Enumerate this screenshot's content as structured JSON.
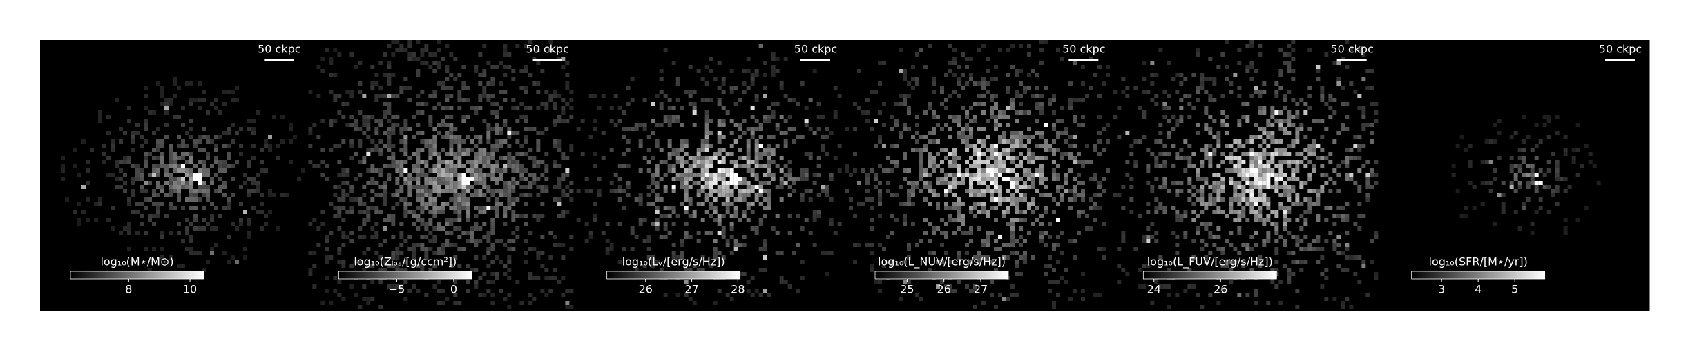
{
  "panels": [
    {
      "label": "log₁₀(M⋆/M⊙)",
      "scalebar": "50 ckpc",
      "clim": [
        6.1,
        10.45
      ],
      "ticks": [
        8,
        10
      ]
    },
    {
      "label": "log₁₀(Zₗₒₛ/[g/ccm²])",
      "scalebar": "50 ckpc",
      "clim": [
        -10.1,
        1.6
      ],
      "ticks": [
        {
          "value": -5,
          "label": "−5"
        },
        0
      ]
    },
    {
      "label": "log₁₀(Lᵥ/[erg/s/Hz])",
      "scalebar": "50 ckpc",
      "clim": [
        25.16,
        28.05
      ],
      "ticks": [
        26,
        27,
        28
      ]
    },
    {
      "label": "log₁₀(L_NUV/[erg/s/Hz])",
      "scalebar": "50 ckpc",
      "clim": [
        24.13,
        27.75
      ],
      "ticks": [
        25,
        26,
        27
      ]
    },
    {
      "label": "log₁₀(L_FUV/[erg/s/Hz])",
      "scalebar": "50 ckpc",
      "clim": [
        23.68,
        27.68
      ],
      "ticks": [
        24,
        26
      ]
    },
    {
      "label": "log₁₀(SFR/[M⋆/yr])",
      "scalebar": "50 ckpc",
      "clim": [
        2.18,
        5.82
      ],
      "ticks": [
        3,
        4,
        5
      ]
    }
  ]
}
